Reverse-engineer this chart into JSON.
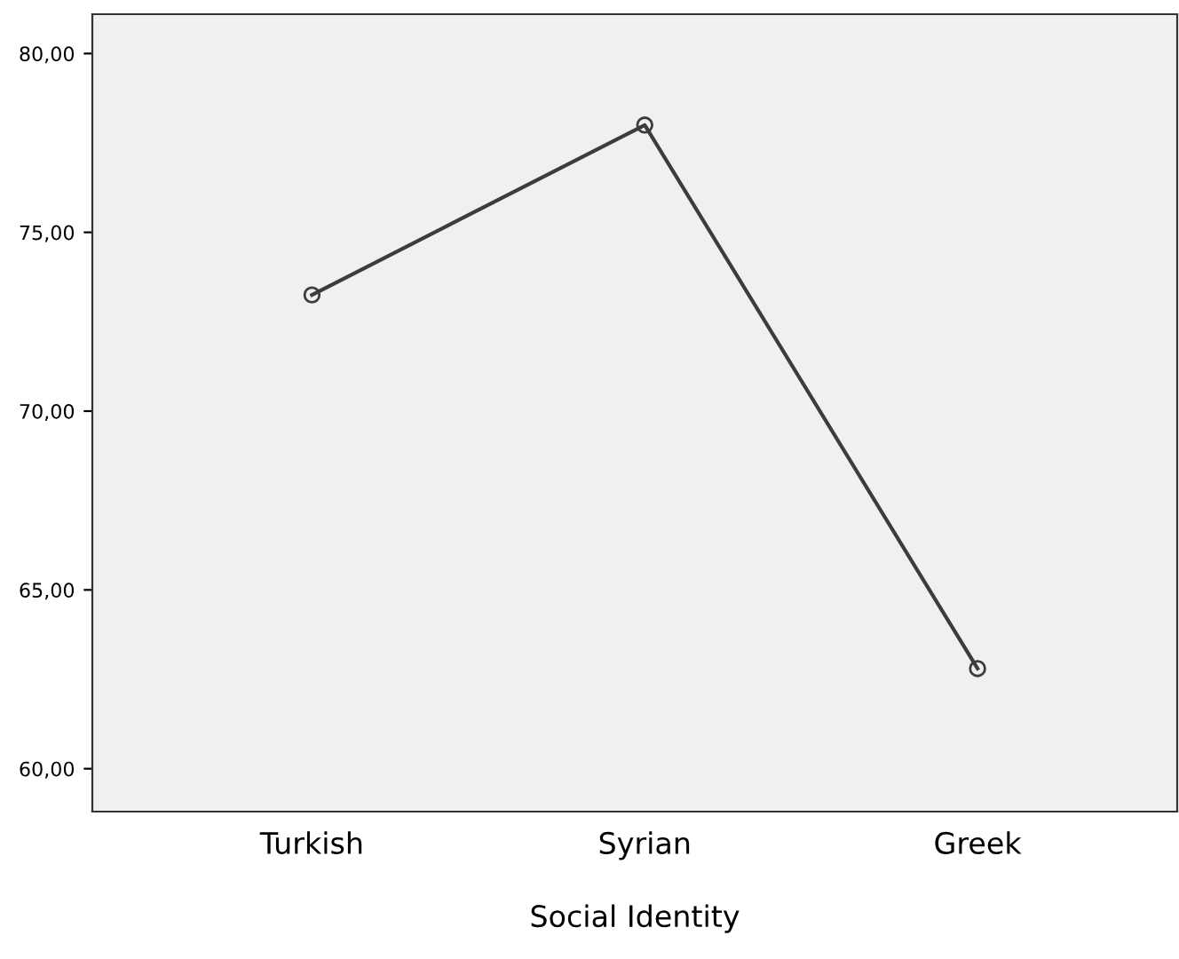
{
  "chart_data": {
    "type": "line",
    "xlabel": "Social Identity",
    "categories": [
      "Turkish",
      "Syrian",
      "Greek"
    ],
    "series": [
      {
        "color": "#3c3c3c",
        "values": [
          73.25,
          78.0,
          62.8
        ]
      }
    ],
    "ylim": [
      58.8,
      81.1
    ],
    "yticks": [
      {
        "value": 60,
        "label": "60,00"
      },
      {
        "value": 65,
        "label": "65,00"
      },
      {
        "value": 70,
        "label": "70,00"
      },
      {
        "value": 75,
        "label": "75,00"
      },
      {
        "value": 80,
        "label": "80,00"
      }
    ],
    "marker": "circle",
    "line_style": "solid",
    "grid": false,
    "legend": false
  }
}
